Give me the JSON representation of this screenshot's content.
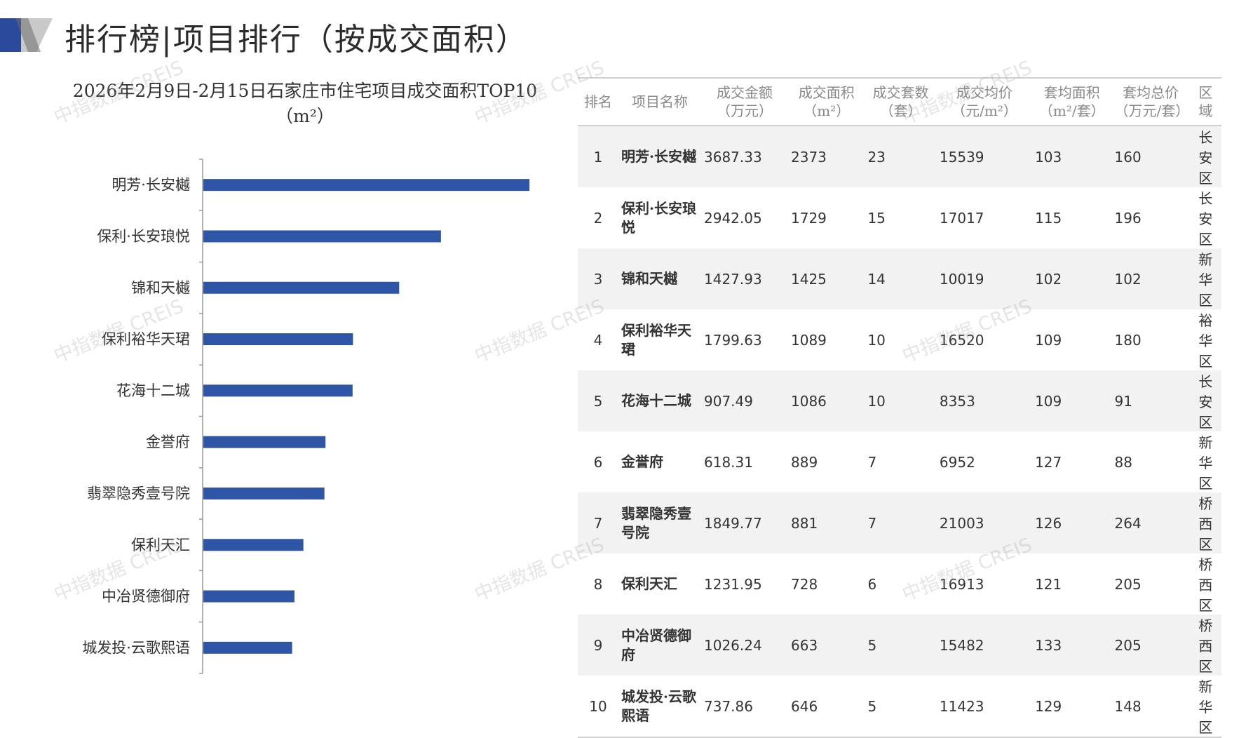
{
  "header": {
    "title": "排行榜|项目排行（按成交面积）"
  },
  "watermark": "中指数据 CREIS",
  "colors": {
    "bar": "#2f56a6",
    "accent_dark": "#2b4a9c",
    "accent_light": "#c9c9c9"
  },
  "chart_data": {
    "type": "bar",
    "orientation": "horizontal",
    "title": "2026年2月9日-2月15日石家庄市住宅项目成交面积TOP10（m²）",
    "categories": [
      "明芳·长安樾",
      "保利·长安琅悦",
      "锦和天樾",
      "保利裕华天珺",
      "花海十二城",
      "金誉府",
      "翡翠隐秀壹号院",
      "保利天汇",
      "中冶贤德御府",
      "城发投·云歌熙语"
    ],
    "values": [
      2373,
      1729,
      1425,
      1089,
      1086,
      889,
      881,
      728,
      663,
      646
    ],
    "xlim": [
      0,
      2500
    ],
    "grid": false,
    "xlabel": "",
    "ylabel": ""
  },
  "table": {
    "headers": [
      "排名",
      "项目名称",
      "成交金额（万元）",
      "成交面积（m²）",
      "成交套数（套）",
      "成交均价（元/m²）",
      "套均面积（m²/套）",
      "套均总价（万元/套）",
      "区域"
    ],
    "rows": [
      {
        "rank": "1",
        "name": "明芳·长安樾",
        "amount": "3687.33",
        "area": "2373",
        "units": "23",
        "price": "15539",
        "avg_area": "103",
        "avg_total": "160",
        "district": "长安区"
      },
      {
        "rank": "2",
        "name": "保利·长安琅悦",
        "amount": "2942.05",
        "area": "1729",
        "units": "15",
        "price": "17017",
        "avg_area": "115",
        "avg_total": "196",
        "district": "长安区"
      },
      {
        "rank": "3",
        "name": "锦和天樾",
        "amount": "1427.93",
        "area": "1425",
        "units": "14",
        "price": "10019",
        "avg_area": "102",
        "avg_total": "102",
        "district": "新华区"
      },
      {
        "rank": "4",
        "name": "保利裕华天珺",
        "amount": "1799.63",
        "area": "1089",
        "units": "10",
        "price": "16520",
        "avg_area": "109",
        "avg_total": "180",
        "district": "裕华区"
      },
      {
        "rank": "5",
        "name": "花海十二城",
        "amount": "907.49",
        "area": "1086",
        "units": "10",
        "price": "8353",
        "avg_area": "109",
        "avg_total": "91",
        "district": "长安区"
      },
      {
        "rank": "6",
        "name": "金誉府",
        "amount": "618.31",
        "area": "889",
        "units": "7",
        "price": "6952",
        "avg_area": "127",
        "avg_total": "88",
        "district": "新华区"
      },
      {
        "rank": "7",
        "name": "翡翠隐秀壹号院",
        "amount": "1849.77",
        "area": "881",
        "units": "7",
        "price": "21003",
        "avg_area": "126",
        "avg_total": "264",
        "district": "桥西区"
      },
      {
        "rank": "8",
        "name": "保利天汇",
        "amount": "1231.95",
        "area": "728",
        "units": "6",
        "price": "16913",
        "avg_area": "121",
        "avg_total": "205",
        "district": "桥西区"
      },
      {
        "rank": "9",
        "name": "中冶贤德御府",
        "amount": "1026.24",
        "area": "663",
        "units": "5",
        "price": "15482",
        "avg_area": "133",
        "avg_total": "205",
        "district": "桥西区"
      },
      {
        "rank": "10",
        "name": "城发投·云歌熙语",
        "amount": "737.86",
        "area": "646",
        "units": "5",
        "price": "11423",
        "avg_area": "129",
        "avg_total": "148",
        "district": "新华区"
      }
    ]
  }
}
